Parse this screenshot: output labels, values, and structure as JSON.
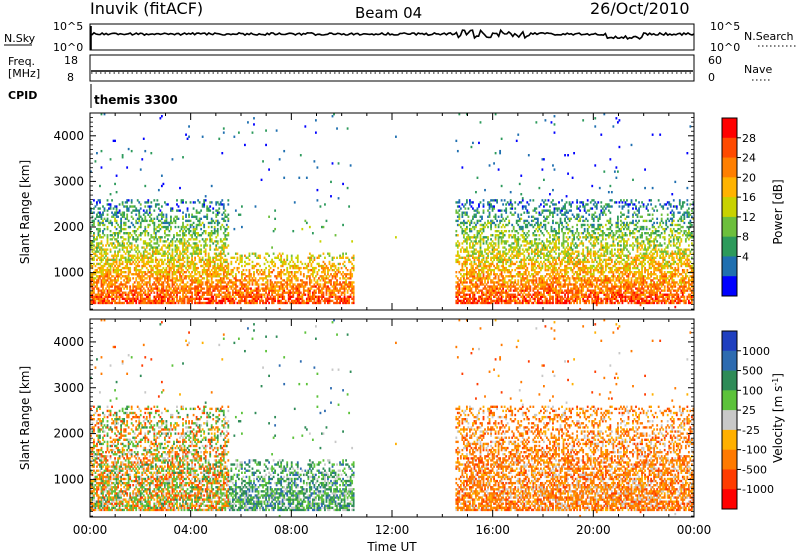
{
  "header": {
    "station": "Inuvik (fitACF)",
    "beam": "Beam 04",
    "date": "26/Oct/2010"
  },
  "top_panels": {
    "nsky_label": "N.Sky",
    "nsky_ticks": [
      "10^5",
      "10^0"
    ],
    "nsearch_label": "N.Search",
    "nsearch_ticks": [
      "10^5",
      "10^0"
    ],
    "freq_label": "Freq.",
    "freq_unit": "[MHz]",
    "freq_ticks": [
      "18",
      "8"
    ],
    "nave_label": "Nave",
    "nave_ticks": [
      "60",
      "0"
    ],
    "cpid_label": "CPID",
    "cpid_value": "themis 3300"
  },
  "chart_data": [
    {
      "type": "heatmap",
      "panel": "power",
      "ylabel": "Slant Range [km]",
      "xlim": [
        "00:00",
        "24:00"
      ],
      "ylim": [
        180,
        4500
      ],
      "yticks": [
        1000,
        2000,
        3000,
        4000
      ],
      "colorbar": {
        "label": "Power [dB]",
        "ticks": [
          "28",
          "24",
          "20",
          "16",
          "12",
          "8",
          "4"
        ],
        "colors": [
          "#ff0000",
          "#ff4a00",
          "#ff7f00",
          "#ffb300",
          "#c8d200",
          "#6cbf3c",
          "#2c9a5b",
          "#1f6fb0",
          "#0000ff"
        ]
      },
      "echo_regions": [
        {
          "t_start": 0.0,
          "t_end": 5.5,
          "range_min": 300,
          "range_max": 2600,
          "level": "high"
        },
        {
          "t_start": 5.5,
          "t_end": 10.5,
          "range_min": 300,
          "range_max": 1400,
          "level": "high"
        },
        {
          "t_start": 14.5,
          "t_end": 24.0,
          "range_min": 300,
          "range_max": 2600,
          "level": "high"
        }
      ]
    },
    {
      "type": "heatmap",
      "panel": "velocity",
      "xlabel": "Time UT",
      "ylabel": "Slant Range [km]",
      "xlim": [
        "00:00",
        "24:00"
      ],
      "ylim": [
        180,
        4500
      ],
      "xticks": [
        "00:00",
        "04:00",
        "08:00",
        "12:00",
        "16:00",
        "20:00",
        "00:00"
      ],
      "yticks": [
        1000,
        2000,
        3000,
        4000
      ],
      "colorbar": {
        "label": "Velocity [m s",
        "label_sup": "-1",
        "label_end": "]",
        "ticks": [
          "1000",
          "500",
          "100",
          "25",
          "-25",
          "-100",
          "-500",
          "-1000"
        ],
        "colors": [
          "#1f3fbf",
          "#2d6bb0",
          "#2e8b57",
          "#5cc23a",
          "#c8c8c8",
          "#ffb000",
          "#ff7a00",
          "#ff3c00",
          "#ff0000"
        ]
      },
      "echo_regions": [
        {
          "t_start": 0.0,
          "t_end": 5.5,
          "range_min": 300,
          "range_max": 2600,
          "velocity": "mixed"
        },
        {
          "t_start": 5.5,
          "t_end": 11.0,
          "range_min": 300,
          "range_max": 1200,
          "velocity": "toward"
        },
        {
          "t_start": 14.5,
          "t_end": 24.0,
          "range_min": 300,
          "range_max": 2600,
          "velocity": "away"
        }
      ]
    }
  ]
}
